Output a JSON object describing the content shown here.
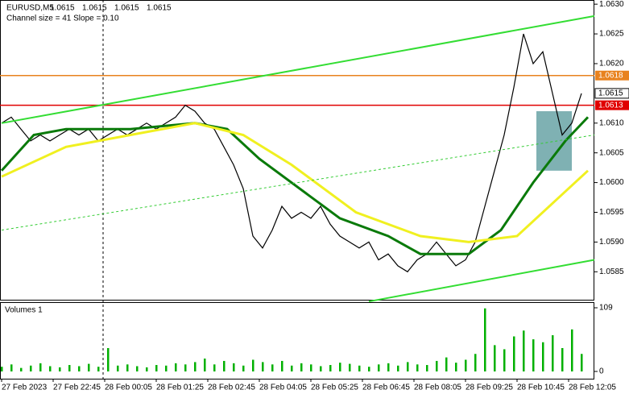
{
  "chart_data": {
    "type": "line",
    "header": "EURUSD,M5",
    "ohlc": [
      1.0615,
      1.0615,
      1.0615,
      1.0615
    ],
    "subheader": "Channel size = 41 Slope = 0.10",
    "xlim": [
      0,
      184
    ],
    "xticks": [
      {
        "value": 0,
        "label": "27 Feb 2023"
      },
      {
        "value": 16,
        "label": "27 Feb 22:45"
      },
      {
        "value": 32,
        "label": "28 Feb 00:05"
      },
      {
        "value": 48,
        "label": "28 Feb 01:25"
      },
      {
        "value": 64,
        "label": "28 Feb 02:45"
      },
      {
        "value": 80,
        "label": "28 Feb 04:05"
      },
      {
        "value": 96,
        "label": "28 Feb 05:25"
      },
      {
        "value": 112,
        "label": "28 Feb 06:45"
      },
      {
        "value": 128,
        "label": "28 Feb 08:05"
      },
      {
        "value": 144,
        "label": "28 Feb 09:25"
      },
      {
        "value": 160,
        "label": "28 Feb 10:45"
      },
      {
        "value": 176,
        "label": "28 Feb 12:05"
      }
    ],
    "ylim": [
      1.05803,
      1.06307
    ],
    "yticks": [
      {
        "value": 1.063,
        "label": "1.0630"
      },
      1.0625,
      {
        "value": 1.062,
        "label": "1.0620"
      },
      {
        "value": 1.061,
        "label": "1.0610"
      },
      1.0605,
      {
        "value": 1.06,
        "label": "1.0600"
      },
      1.0595,
      {
        "value": 1.059,
        "label": "1.0590"
      },
      1.0585
    ],
    "series": [
      {
        "color": "#000000",
        "width": 1.2,
        "dash": false,
        "x": [
          0,
          3,
          6,
          9,
          12,
          15,
          18,
          21,
          24,
          27,
          30,
          33,
          36,
          39,
          42,
          45,
          48,
          51,
          54,
          57,
          60,
          63,
          66,
          69,
          72,
          75,
          78,
          81,
          84,
          87,
          90,
          93,
          96,
          99,
          102,
          105,
          108,
          111,
          114,
          117,
          120,
          123,
          126,
          129,
          132,
          135,
          138,
          141,
          144,
          147,
          150,
          153,
          156,
          159,
          162,
          165,
          168,
          171,
          174,
          177,
          180
        ],
        "values": [
          1.061,
          1.0611,
          1.0609,
          1.0607,
          1.0608,
          1.0607,
          1.0608,
          1.0609,
          1.0608,
          1.0609,
          1.0607,
          1.0608,
          1.0609,
          1.0608,
          1.0609,
          1.061,
          1.0609,
          1.061,
          1.0611,
          1.0613,
          1.0612,
          1.061,
          1.0609,
          1.0606,
          1.0603,
          1.0599,
          1.0591,
          1.0589,
          1.0592,
          1.0596,
          1.0594,
          1.0595,
          1.0594,
          1.0596,
          1.0593,
          1.0591,
          1.059,
          1.0589,
          1.059,
          1.0587,
          1.0588,
          1.0586,
          1.0585,
          1.0587,
          1.0588,
          1.059,
          1.0588,
          1.0586,
          1.0587,
          1.059,
          1.0596,
          1.0602,
          1.0608,
          1.0616,
          1.0625,
          1.062,
          1.0622,
          1.0615,
          1.0608,
          1.061,
          1.0615
        ]
      },
      {
        "color": "#0a7a0a",
        "width": 3,
        "dash": false,
        "x": [
          0,
          10,
          20,
          40,
          60,
          70,
          80,
          95,
          105,
          120,
          130,
          145,
          155,
          165,
          175,
          182
        ],
        "values": [
          1.0602,
          1.0608,
          1.0609,
          1.0609,
          1.061,
          1.0609,
          1.0604,
          1.0598,
          1.0594,
          1.0591,
          1.0588,
          1.0588,
          1.0592,
          1.06,
          1.0607,
          1.0611
        ]
      },
      {
        "color": "#f0f020",
        "width": 3,
        "dash": false,
        "x": [
          0,
          20,
          40,
          60,
          75,
          90,
          110,
          130,
          145,
          160,
          172,
          182
        ],
        "values": [
          1.0601,
          1.0606,
          1.0608,
          1.061,
          1.0608,
          1.0603,
          1.0595,
          1.0591,
          1.059,
          1.0591,
          1.0597,
          1.0602
        ]
      },
      {
        "color": "#33dd33",
        "width": 2,
        "dash": false,
        "x": [
          0,
          184
        ],
        "values": [
          1.061,
          1.0628
        ]
      },
      {
        "color": "#33dd33",
        "width": 2,
        "dash": false,
        "x": [
          114,
          184
        ],
        "values": [
          1.058,
          1.0587
        ]
      },
      {
        "color": "#33cc33",
        "width": 1,
        "dash": true,
        "x": [
          0,
          184
        ],
        "values": [
          1.0592,
          1.0608
        ]
      }
    ],
    "levels": [
      {
        "value": 1.0618,
        "color": "#e8821e"
      },
      {
        "value": 1.0613,
        "color": "#e00000"
      }
    ],
    "current_price": 1.0615,
    "box": {
      "x": [
        166,
        177
      ],
      "y": [
        1.0602,
        1.0612
      ],
      "color": "#5f9ea0"
    },
    "separator_x": 31.5,
    "volumes": {
      "title": "Volumes 1",
      "color": "#00b000",
      "ylim": [
        0,
        109
      ],
      "yticks": [
        109,
        0
      ],
      "x": [
        0,
        3,
        6,
        9,
        12,
        15,
        18,
        21,
        24,
        27,
        30,
        33,
        36,
        39,
        42,
        45,
        48,
        51,
        54,
        57,
        60,
        63,
        66,
        69,
        72,
        75,
        78,
        81,
        84,
        87,
        90,
        93,
        96,
        99,
        102,
        105,
        108,
        111,
        114,
        117,
        120,
        123,
        126,
        129,
        132,
        135,
        138,
        141,
        144,
        147,
        150,
        153,
        156,
        159,
        162,
        165,
        168,
        171,
        174,
        177,
        180
      ],
      "values": [
        8,
        12,
        6,
        10,
        14,
        9,
        7,
        11,
        9,
        13,
        8,
        40,
        10,
        12,
        9,
        7,
        11,
        10,
        14,
        12,
        16,
        22,
        12,
        18,
        14,
        10,
        20,
        16,
        12,
        18,
        10,
        14,
        12,
        9,
        11,
        15,
        13,
        10,
        8,
        12,
        14,
        10,
        16,
        12,
        11,
        18,
        24,
        15,
        20,
        30,
        108,
        45,
        38,
        60,
        70,
        55,
        50,
        62,
        40,
        72,
        30
      ]
    }
  }
}
